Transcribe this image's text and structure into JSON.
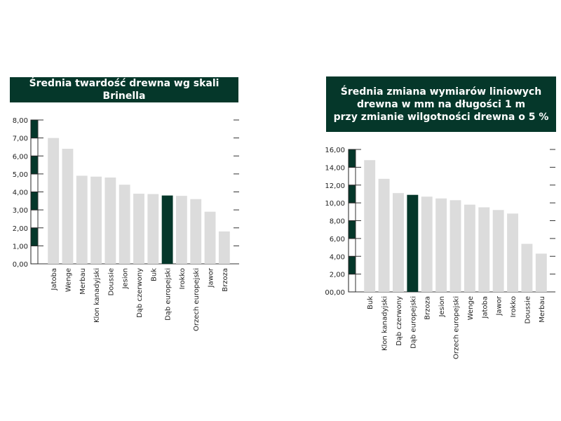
{
  "colors": {
    "accent": "#05372a",
    "bar": "#dcdcdc",
    "highlight": "#05372a"
  },
  "chart_data": [
    {
      "type": "bar",
      "title": "Średnia twardość drewna wg skali Brinella",
      "xlabel": "",
      "ylabel": "",
      "ylim": [
        0,
        8
      ],
      "yticks": [
        "0,00",
        "1,00",
        "2,00",
        "3,00",
        "4,00",
        "5,00",
        "6,00",
        "7,00",
        "8,00"
      ],
      "categories": [
        "Jatoba",
        "Wenge",
        "Merbau",
        "Klon kanadyjski",
        "Doussie",
        "Jesion",
        "Dąb czerwony",
        "Buk",
        "Dąb europejski",
        "Irokko",
        "Orzech europejski",
        "Jawor",
        "Brzoza"
      ],
      "values": [
        7.0,
        6.4,
        4.9,
        4.85,
        4.8,
        4.4,
        3.9,
        3.88,
        3.8,
        3.78,
        3.6,
        2.9,
        1.8
      ],
      "highlight": "Dąb europejski"
    },
    {
      "type": "bar",
      "title_lines": [
        "Średnia zmiana wymiarów liniowych",
        "drewna w mm na długości 1 m",
        "przy zmianie wilgotności drewna o 5 %"
      ],
      "xlabel": "",
      "ylabel": "",
      "ylim": [
        0,
        16
      ],
      "yticks": [
        "00,00",
        "2,00",
        "4,00",
        "6,00",
        "8,00",
        "10,00",
        "12,00",
        "14,00",
        "16,00"
      ],
      "categories": [
        "Buk",
        "Klon kanadyjski",
        "Dąb czerwony",
        "Dąb europejski",
        "Brzoza",
        "Jesion",
        "Orzech europejski",
        "Wenge",
        "Jatoba",
        "Jawor",
        "Irokko",
        "Doussie",
        "Merbau"
      ],
      "values": [
        14.8,
        12.7,
        11.1,
        10.9,
        10.7,
        10.5,
        10.3,
        9.8,
        9.5,
        9.2,
        8.8,
        5.4,
        4.3
      ],
      "highlight": "Dąb europejski"
    }
  ]
}
